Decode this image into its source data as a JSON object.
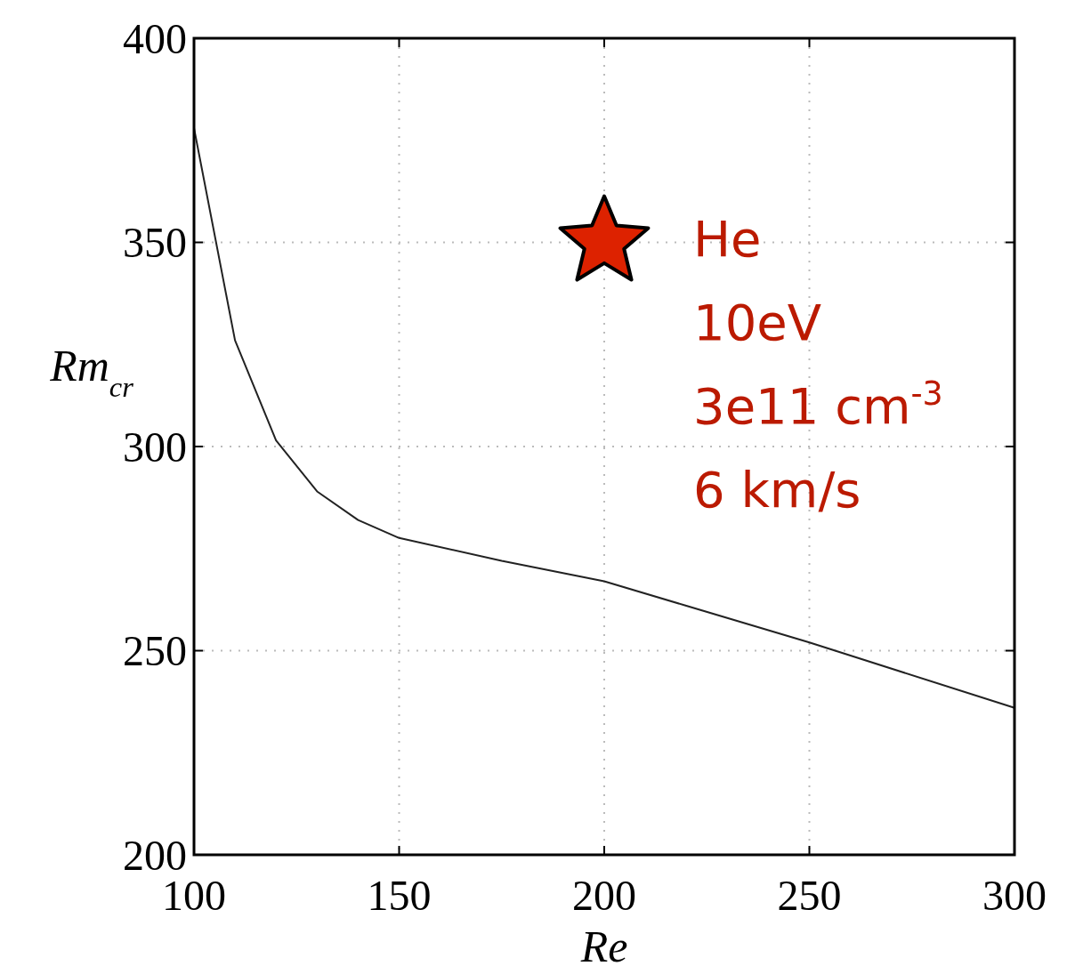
{
  "chart_data": {
    "type": "line",
    "xlabel": "Re",
    "ylabel": "Rm$_{cr}$",
    "xlim": [
      100,
      300
    ],
    "ylim": [
      200,
      400
    ],
    "xticks": [
      100,
      150,
      200,
      250,
      300
    ],
    "yticks": [
      200,
      250,
      300,
      350,
      400
    ],
    "grid": true,
    "series": [
      {
        "color": "#222222",
        "marker": "none",
        "line_style": "solid",
        "x": [
          100,
          110,
          120,
          130,
          140,
          150,
          175,
          200,
          220,
          250,
          300
        ],
        "values": [
          378,
          326,
          301.5,
          289,
          282,
          277.6,
          272,
          267,
          261,
          252,
          236
        ]
      },
      {
        "type": "scatter",
        "color": "#dd2200",
        "marker": "star",
        "x": [
          200
        ],
        "values": [
          350
        ]
      }
    ],
    "annotations": [
      "He",
      "10eV",
      "3e11 cm$^{-3}$",
      "6 km/s"
    ]
  }
}
